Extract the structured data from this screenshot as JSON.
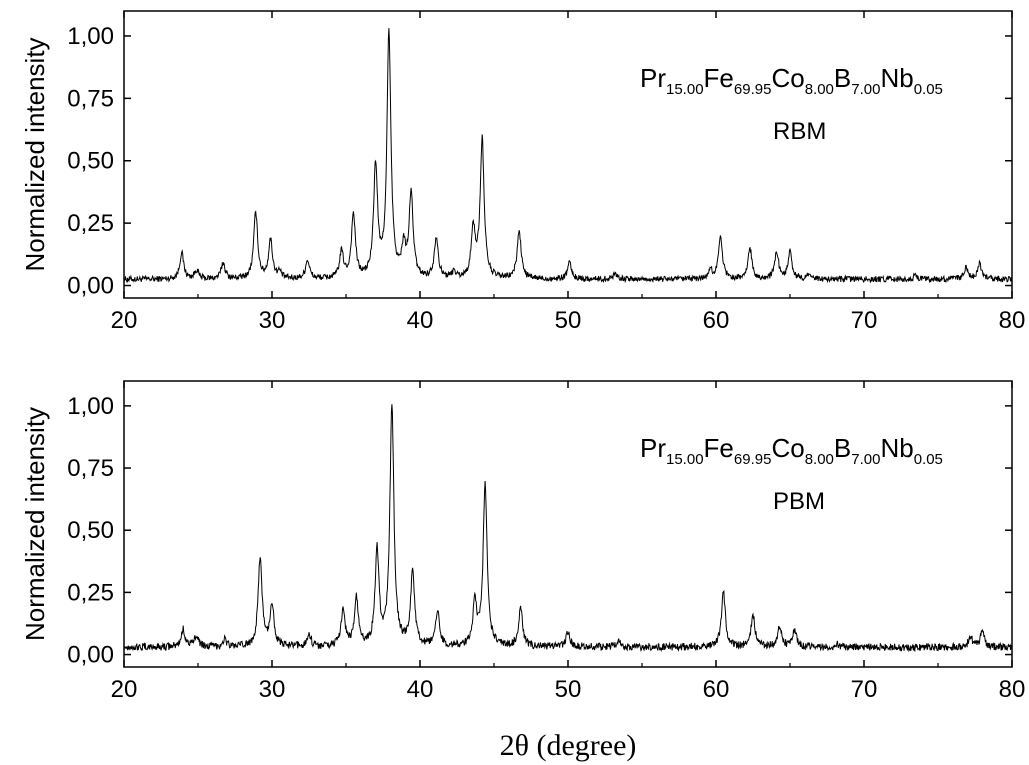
{
  "chart_data": [
    {
      "type": "line",
      "name": "top-panel",
      "title": "",
      "xlabel": "",
      "ylabel": "Normalized intensity",
      "xlim": [
        20,
        80
      ],
      "ylim": [
        -0.05,
        1.1
      ],
      "xticks": [
        20,
        30,
        40,
        50,
        60,
        70,
        80
      ],
      "xtick_labels": [
        "20",
        "30",
        "40",
        "50",
        "60",
        "70",
        "80"
      ],
      "yticks": [
        0,
        0.25,
        0.5,
        0.75,
        1.0
      ],
      "ytick_labels": [
        "0,00",
        "0,25",
        "0,50",
        "0,75",
        "1,00"
      ],
      "grid": false,
      "annotations": {
        "formula": {
          "Pr": "Pr",
          "Pr_sub": "15.00",
          "Fe": "Fe",
          "Fe_sub": "69.95",
          "Co": "Co",
          "Co_sub": "8.00",
          "B": "B",
          "B_sub": "7.00",
          "Nb": "Nb",
          "Nb_sub": "0.05"
        },
        "sample": "RBM"
      },
      "baseline": 0.025,
      "noise": 0.012,
      "peaks": [
        {
          "x": 23.9,
          "y": 0.13
        },
        {
          "x": 24.9,
          "y": 0.06
        },
        {
          "x": 26.7,
          "y": 0.09
        },
        {
          "x": 28.9,
          "y": 0.29
        },
        {
          "x": 29.9,
          "y": 0.18
        },
        {
          "x": 30.5,
          "y": 0.05
        },
        {
          "x": 32.4,
          "y": 0.1
        },
        {
          "x": 34.7,
          "y": 0.13
        },
        {
          "x": 35.5,
          "y": 0.28
        },
        {
          "x": 37.0,
          "y": 0.47
        },
        {
          "x": 37.9,
          "y": 1.0
        },
        {
          "x": 38.9,
          "y": 0.14
        },
        {
          "x": 39.4,
          "y": 0.36
        },
        {
          "x": 41.1,
          "y": 0.19
        },
        {
          "x": 42.3,
          "y": 0.05
        },
        {
          "x": 43.6,
          "y": 0.22
        },
        {
          "x": 44.2,
          "y": 0.58
        },
        {
          "x": 46.7,
          "y": 0.22
        },
        {
          "x": 50.1,
          "y": 0.09
        },
        {
          "x": 53.2,
          "y": 0.05
        },
        {
          "x": 59.6,
          "y": 0.06
        },
        {
          "x": 60.3,
          "y": 0.2
        },
        {
          "x": 62.3,
          "y": 0.15
        },
        {
          "x": 64.1,
          "y": 0.13
        },
        {
          "x": 65.0,
          "y": 0.13
        },
        {
          "x": 66.2,
          "y": 0.04
        },
        {
          "x": 73.5,
          "y": 0.04
        },
        {
          "x": 76.9,
          "y": 0.07
        },
        {
          "x": 77.8,
          "y": 0.09
        }
      ]
    },
    {
      "type": "line",
      "name": "bottom-panel",
      "title": "",
      "xlabel": "2θ (degree)",
      "ylabel": "Normalized intensity",
      "xlim": [
        20,
        80
      ],
      "ylim": [
        -0.05,
        1.1
      ],
      "xticks": [
        20,
        30,
        40,
        50,
        60,
        70,
        80
      ],
      "xtick_labels": [
        "20",
        "30",
        "40",
        "50",
        "60",
        "70",
        "80"
      ],
      "yticks": [
        0,
        0.25,
        0.5,
        0.75,
        1.0
      ],
      "ytick_labels": [
        "0,00",
        "0,25",
        "0,50",
        "0,75",
        "1,00"
      ],
      "grid": false,
      "annotations": {
        "formula": {
          "Pr": "Pr",
          "Pr_sub": "15.00",
          "Fe": "Fe",
          "Fe_sub": "69.95",
          "Co": "Co",
          "Co_sub": "8.00",
          "B": "B",
          "B_sub": "7.00",
          "Nb": "Nb",
          "Nb_sub": "0.05"
        },
        "sample": "PBM"
      },
      "baseline": 0.03,
      "noise": 0.015,
      "peaks": [
        {
          "x": 24.0,
          "y": 0.1
        },
        {
          "x": 24.9,
          "y": 0.08
        },
        {
          "x": 26.8,
          "y": 0.06
        },
        {
          "x": 29.2,
          "y": 0.39
        },
        {
          "x": 30.0,
          "y": 0.2
        },
        {
          "x": 32.5,
          "y": 0.08
        },
        {
          "x": 34.8,
          "y": 0.18
        },
        {
          "x": 35.7,
          "y": 0.22
        },
        {
          "x": 37.1,
          "y": 0.41
        },
        {
          "x": 38.1,
          "y": 1.0
        },
        {
          "x": 39.5,
          "y": 0.33
        },
        {
          "x": 41.2,
          "y": 0.17
        },
        {
          "x": 43.7,
          "y": 0.2
        },
        {
          "x": 44.4,
          "y": 0.68
        },
        {
          "x": 46.8,
          "y": 0.19
        },
        {
          "x": 50.0,
          "y": 0.09
        },
        {
          "x": 53.4,
          "y": 0.06
        },
        {
          "x": 60.5,
          "y": 0.25
        },
        {
          "x": 62.5,
          "y": 0.16
        },
        {
          "x": 64.3,
          "y": 0.11
        },
        {
          "x": 65.3,
          "y": 0.1
        },
        {
          "x": 68.2,
          "y": 0.04
        },
        {
          "x": 77.2,
          "y": 0.07
        },
        {
          "x": 78.0,
          "y": 0.09
        }
      ]
    }
  ]
}
